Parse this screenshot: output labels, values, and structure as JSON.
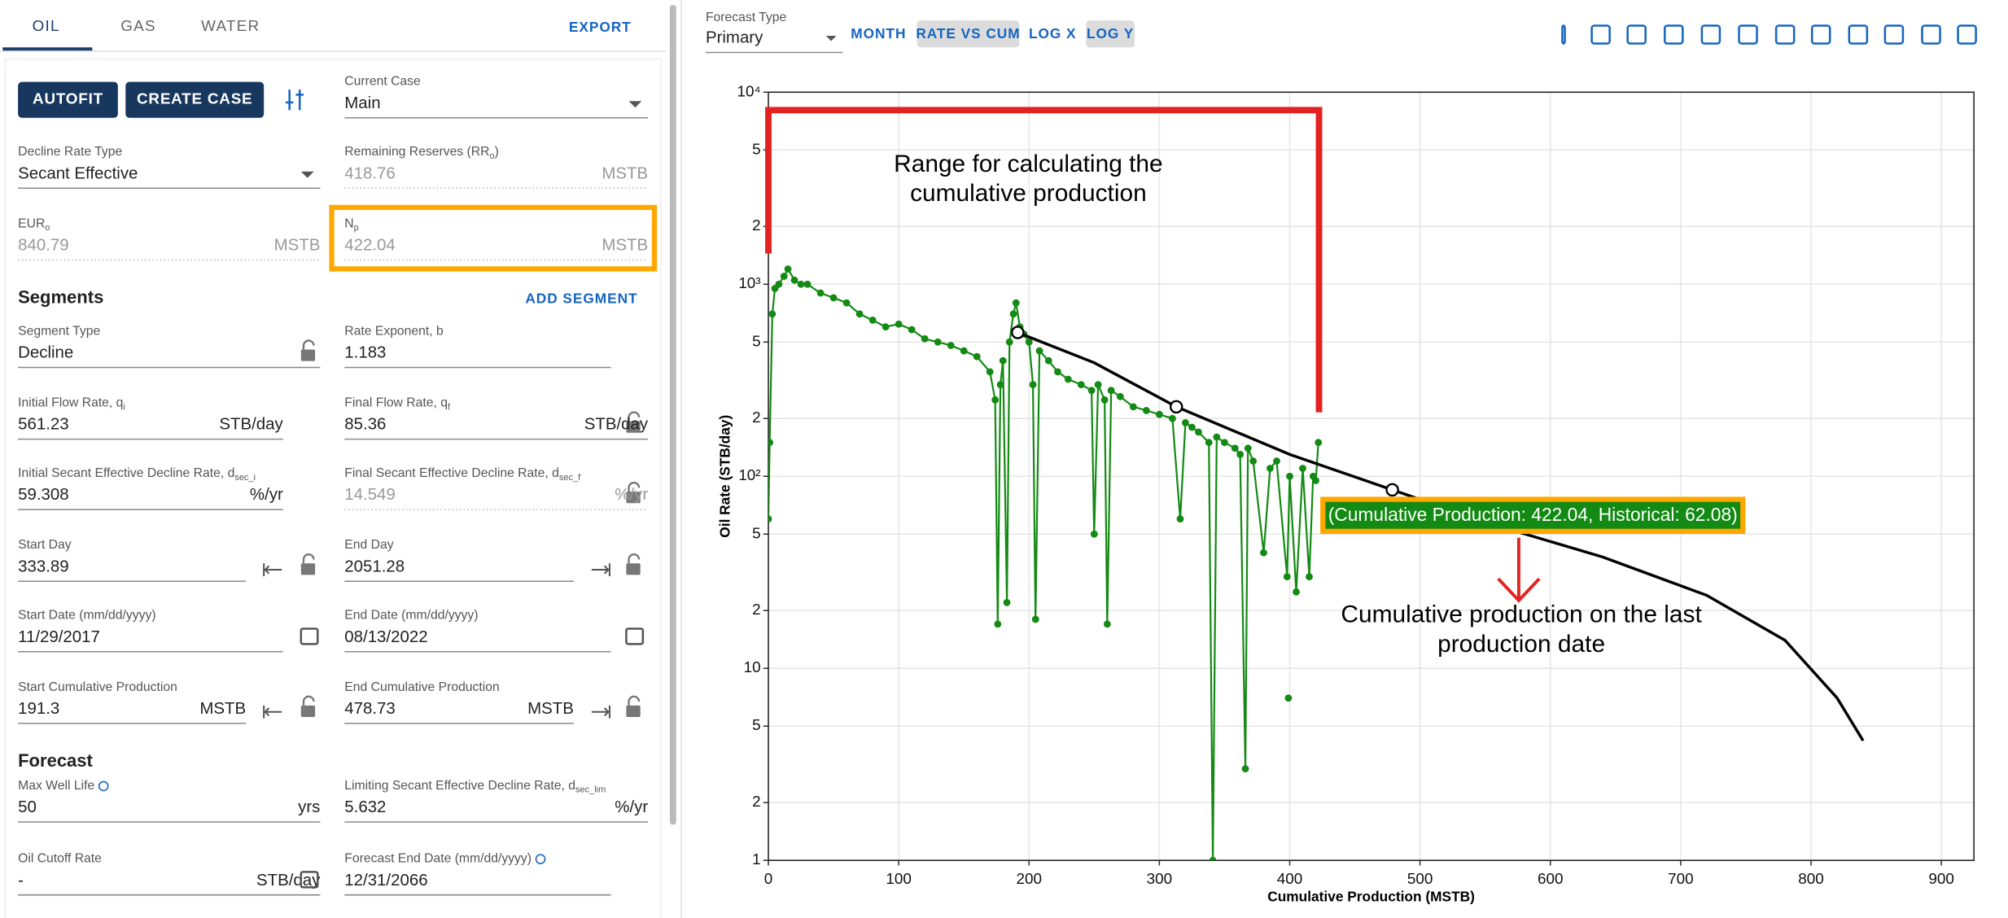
{
  "tabs": [
    "OIL",
    "GAS",
    "WATER"
  ],
  "export": "EXPORT",
  "buttons": [
    "AUTOFIT",
    "CREATE CASE"
  ],
  "fields": [
    {
      "label": "Current Case",
      "value": "Main"
    },
    {
      "label": "Decline Rate Type",
      "value": "Secant Effective"
    },
    {
      "label": "Remaining Reserves (RR",
      "sub": "o",
      "label_end": ")",
      "value": "418.76",
      "unit": "MSTB"
    },
    {
      "label": "EUR",
      "sub": "o",
      "value": "840.79",
      "unit": "MSTB"
    },
    {
      "label": "N",
      "sub": "p",
      "value": "422.04",
      "unit": "MSTB"
    },
    {
      "label": "Segment Type",
      "value": "Decline"
    },
    {
      "label": "Rate Exponent, b",
      "value": "1.183"
    },
    {
      "label": "Initial Flow Rate, q",
      "sub": "i",
      "value": "561.23",
      "unit": "STB/day"
    },
    {
      "label": "Final Flow Rate, q",
      "sub": "f",
      "value": "85.36",
      "unit": "STB/day"
    },
    {
      "label": "Initial Secant Effective Decline Rate, d",
      "sub": "sec_i",
      "value": "59.308",
      "unit": "%/yr"
    },
    {
      "label": "Final Secant Effective Decline Rate, d",
      "sub": "sec_f",
      "value": "14.549",
      "unit": "%/yr"
    },
    {
      "label": "Start Day",
      "value": "333.89"
    },
    {
      "label": "End Day",
      "value": "2051.28"
    },
    {
      "label": "Start Date (mm/dd/yyyy)",
      "value": "11/29/2017"
    },
    {
      "label": "End Date (mm/dd/yyyy)",
      "value": "08/13/2022"
    },
    {
      "label": "Start Cumulative Production",
      "value": "191.3",
      "unit": "MSTB"
    },
    {
      "label": "End Cumulative Production",
      "value": "478.73",
      "unit": "MSTB"
    },
    {
      "label": "Max Well Life",
      "value": "50",
      "unit": "yrs"
    },
    {
      "label": "Limiting Secant Effective Decline Rate, d",
      "sub": "sec_lim",
      "value": "5.632",
      "unit": "%/yr"
    },
    {
      "label": "Oil Cutoff Rate",
      "value": "-",
      "unit": "STB/day"
    },
    {
      "label": "Forecast End Date (mm/dd/yyyy)",
      "value": "12/31/2066"
    }
  ],
  "sections": [
    "Segments",
    "Forecast"
  ],
  "add_segment": "ADD SEGMENT",
  "toolbar": {
    "forecast_type_label": "Forecast Type",
    "forecast_type": "Primary",
    "toggles": [
      "MONTH",
      "RATE VS CUM",
      "LOG X",
      "LOG Y"
    ]
  },
  "chart_data": {
    "type": "line",
    "x_label": "Cumulative Production (MSTB)",
    "y_label": "Oil Rate (STB/day)",
    "xlim": [
      0,
      925
    ],
    "xticks": [
      0,
      100,
      200,
      300,
      400,
      500,
      600,
      700,
      800,
      900
    ],
    "ylim": [
      1,
      10000
    ],
    "ylog": true,
    "grid": true,
    "yticks": [
      1,
      {
        "value": 2,
        "label": "2"
      },
      {
        "value": 5,
        "label": "5"
      },
      10,
      {
        "value": 20,
        "label": "2"
      },
      {
        "value": 50,
        "label": "5"
      },
      {
        "value": 100,
        "label": "10²"
      },
      {
        "value": 200,
        "label": "2"
      },
      {
        "value": 500,
        "label": "5"
      },
      {
        "value": 1000,
        "label": "10³"
      },
      {
        "value": 2000,
        "label": "2"
      },
      {
        "value": 5000,
        "label": "5"
      },
      {
        "value": 10000,
        "label": "10⁴"
      }
    ],
    "series": [
      {
        "color": "#138a13",
        "x": [
          0,
          1,
          3,
          5,
          8,
          12,
          15,
          20,
          25,
          30,
          40,
          50,
          60,
          70,
          80,
          90,
          100,
          110,
          120,
          130,
          140,
          150,
          160,
          170,
          174,
          176,
          178,
          180,
          183,
          185,
          188,
          190,
          193,
          196,
          200,
          203,
          205,
          208,
          215,
          222,
          230,
          240,
          248,
          250,
          253,
          258,
          260,
          263,
          270,
          280,
          290,
          300,
          310,
          316,
          320,
          325,
          330,
          338,
          341,
          344,
          350,
          358,
          362,
          366,
          368,
          372,
          380,
          385,
          390,
          398,
          400,
          405,
          410,
          415,
          418,
          420,
          422
        ],
        "values": [
          60,
          150,
          700,
          950,
          1000,
          1100,
          1200,
          1050,
          1000,
          1000,
          900,
          850,
          800,
          700,
          650,
          600,
          620,
          580,
          520,
          500,
          480,
          450,
          420,
          350,
          250,
          17,
          300,
          400,
          22,
          500,
          700,
          800,
          600,
          550,
          500,
          300,
          18,
          450,
          400,
          350,
          320,
          300,
          280,
          50,
          300,
          250,
          17,
          280,
          260,
          230,
          220,
          210,
          200,
          60,
          190,
          180,
          170,
          150,
          1,
          160,
          150,
          140,
          130,
          3,
          140,
          120,
          40,
          110,
          120,
          30,
          100,
          25,
          110,
          30,
          100,
          95,
          150
        ]
      },
      {
        "color": "#138a13",
        "x": [
          399
        ],
        "values": [
          7
        ],
        "markers_only": true
      },
      {
        "color": "#000000",
        "x": [
          191.3,
          250,
          313,
          400,
          478.73,
          560,
          640,
          720,
          780,
          820,
          840
        ],
        "values": [
          561,
          390,
          230,
          130,
          85,
          55,
          38,
          24,
          14,
          7,
          4.2
        ],
        "forecast": true
      }
    ],
    "annotations": {
      "range": "Range for calculating the cumulative production",
      "hover": "(Cumulative Production: 422.04, Historical: 62.08)",
      "last": "Cumulative production on the last production date"
    }
  }
}
